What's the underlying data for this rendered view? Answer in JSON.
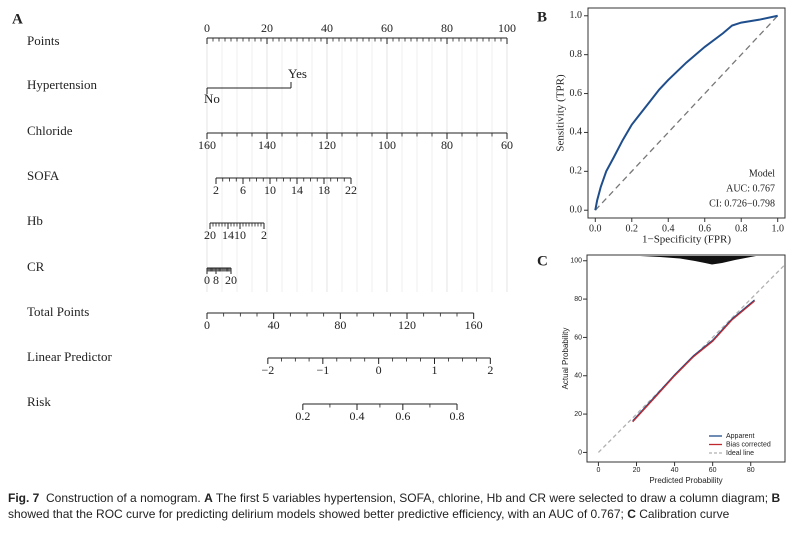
{
  "chart_data": [
    {
      "type": "nomogram",
      "panel": "A",
      "points_lim": [
        0,
        100
      ],
      "total_lim": [
        0,
        180
      ],
      "rows": [
        {
          "name": "Points",
          "scale": "points",
          "labels_above": true,
          "labels": [
            0,
            20,
            40,
            60,
            80,
            100
          ],
          "points": [
            0,
            20,
            40,
            60,
            80,
            100
          ]
        },
        {
          "name": "Hypertension",
          "scale": "points",
          "binary": true,
          "labels": [
            "No",
            "Yes"
          ],
          "points": [
            0,
            28
          ]
        },
        {
          "name": "Chloride",
          "scale": "points",
          "labels": [
            160,
            140,
            120,
            100,
            80,
            60
          ],
          "points": [
            0,
            20,
            40,
            60,
            80,
            100
          ]
        },
        {
          "name": "SOFA",
          "scale": "points",
          "labels": [
            2,
            6,
            10,
            14,
            18,
            22
          ],
          "points": [
            3,
            12,
            21,
            30,
            39,
            48
          ]
        },
        {
          "name": "Hb",
          "scale": "points",
          "labels": [
            20,
            14,
            10,
            2
          ],
          "points": [
            1,
            7,
            11,
            19
          ]
        },
        {
          "name": "CR",
          "scale": "points",
          "labels": [
            0,
            8,
            20
          ],
          "points": [
            0,
            3,
            8
          ]
        },
        {
          "name": "Total Points",
          "scale": "total",
          "labels": [
            0,
            40,
            80,
            120,
            160
          ],
          "points": [
            0,
            40,
            80,
            120,
            160
          ]
        },
        {
          "name": "Linear Predictor",
          "scale": "total",
          "labels": [
            "−2",
            "−1",
            "0",
            "1",
            "2"
          ],
          "points": [
            36.5,
            69.5,
            103,
            136.5,
            170
          ]
        },
        {
          "name": "Risk",
          "scale": "total",
          "labels": [
            0.2,
            0.4,
            0.6,
            0.8
          ],
          "points": [
            57.5,
            90,
            117.5,
            150
          ]
        }
      ]
    },
    {
      "type": "line",
      "panel": "B",
      "xlabel": "1−Specificity (FPR)",
      "ylabel": "Sensitivity (TPR)",
      "x": [
        0,
        0.01,
        0.03,
        0.06,
        0.1,
        0.15,
        0.2,
        0.25,
        0.3,
        0.35,
        0.4,
        0.5,
        0.6,
        0.7,
        0.75,
        0.8,
        0.9,
        1.0
      ],
      "series": [
        {
          "name": "Model",
          "color": "#1f4e8c",
          "values": [
            0,
            0.05,
            0.12,
            0.2,
            0.27,
            0.36,
            0.44,
            0.5,
            0.56,
            0.62,
            0.67,
            0.76,
            0.84,
            0.91,
            0.95,
            0.965,
            0.98,
            1.0
          ]
        }
      ],
      "annotations": [
        "AUC: 0.767",
        "CI: 0.726−0.798"
      ],
      "diagonal": true,
      "xlim": [
        -0.04,
        1.04
      ],
      "ylim": [
        -0.04,
        1.04
      ],
      "xticks": [
        {
          "value": 0,
          "label": "0.0"
        },
        0.2,
        0.4,
        0.6,
        0.8,
        {
          "value": 1,
          "label": "1.0"
        }
      ],
      "yticks": [
        {
          "value": 0,
          "label": "0.0"
        },
        0.2,
        0.4,
        0.6,
        0.8,
        {
          "value": 1,
          "label": "1.0"
        }
      ]
    },
    {
      "type": "line",
      "panel": "C",
      "xlabel": "Predicted Probability",
      "ylabel": "Actual Probability",
      "x": [
        18,
        30,
        40,
        50,
        60,
        70,
        82
      ],
      "series": [
        {
          "name": "Apparent",
          "color": "#1f4e8c",
          "values": [
            16.5,
            29.5,
            40.5,
            50.5,
            58.5,
            69.5,
            79.5
          ]
        },
        {
          "name": "Bias corrected",
          "color": "#c0282d",
          "values": [
            16,
            29,
            40,
            50,
            58,
            69,
            79
          ]
        },
        {
          "name": "Ideal line",
          "color": "#b0b0b0",
          "dashed": true,
          "x": [
            0,
            100
          ],
          "values": [
            0,
            100
          ]
        }
      ],
      "xlim": [
        -6,
        98
      ],
      "ylim": [
        -5,
        103
      ],
      "xticks": [
        0,
        20,
        40,
        60,
        80
      ],
      "yticks": [
        0,
        20,
        40,
        60,
        80,
        100
      ]
    }
  ],
  "caption": [
    "Fig. 7",
    "Construction of a nomogram. ",
    "A",
    " The first 5 variables hypertension, SOFA, chlorine, Hb and CR were selected to draw a column diagram; ",
    "B",
    " showed that the ROC curve for predicting delirium models showed better predictive efficiency, with an AUC of 0.767; ",
    "C",
    " Calibration curve"
  ]
}
